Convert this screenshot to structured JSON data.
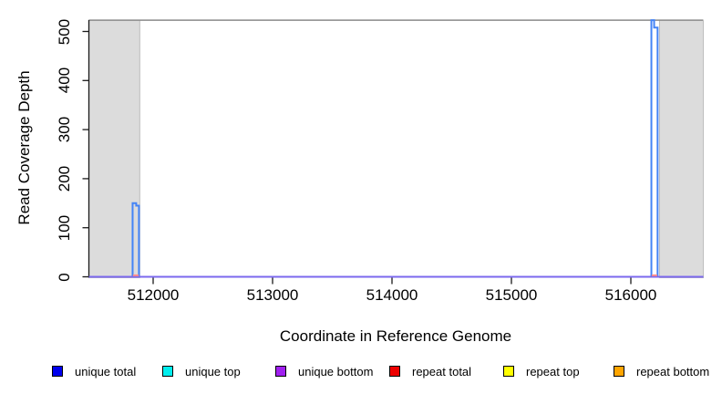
{
  "chart_data": {
    "type": "area",
    "title": "",
    "xlabel": "Coordinate in Reference Genome",
    "ylabel": "Read Coverage Depth",
    "xlim": [
      511462,
      516607
    ],
    "ylim": [
      0,
      523
    ],
    "grid": false,
    "x_ticks": [
      512000,
      513000,
      514000,
      515000,
      516000
    ],
    "y_ticks": [
      0,
      100,
      200,
      300,
      400,
      500
    ],
    "masked_regions": [
      {
        "x_start": 511462,
        "x_end": 511888
      },
      {
        "x_start": 516240,
        "x_end": 516607
      }
    ],
    "top_boundary_value": 523,
    "series": [
      {
        "name": "unique total coverage trace",
        "color": "#4484F6",
        "points": [
          [
            511462,
            0
          ],
          [
            511828,
            0
          ],
          [
            511828,
            150
          ],
          [
            511858,
            150
          ],
          [
            511858,
            145
          ],
          [
            511881,
            145
          ],
          [
            511881,
            0
          ],
          [
            516172,
            0
          ],
          [
            516172,
            523
          ],
          [
            516195,
            523
          ],
          [
            516195,
            508
          ],
          [
            516224,
            508
          ],
          [
            516224,
            0
          ],
          [
            516607,
            0
          ]
        ]
      }
    ],
    "baseline_series": {
      "name": "unique bottom baseline",
      "color": "#7B68EE",
      "points": [
        [
          511462,
          0
        ],
        [
          516607,
          0
        ]
      ]
    },
    "repeat_segments": [
      {
        "name": "repeat total segment",
        "color": "#FF8C8C",
        "x_start": 511831,
        "x_end": 511879,
        "value": 3
      },
      {
        "name": "repeat total segment",
        "color": "#FF8C8C",
        "x_start": 516175,
        "x_end": 516221,
        "value": 3
      }
    ],
    "region_fill_color": "#DCDCDC",
    "region_border_color": "#BDBDBD",
    "top_line_color": "#8A8A8A",
    "axis_color": "#1A1A1A",
    "peaks": [
      {
        "approx_x": 511855,
        "approx_height": 150
      },
      {
        "approx_x": 516198,
        "approx_height": 523
      }
    ]
  },
  "legend": {
    "items": [
      {
        "label": "unique total",
        "color": "#0000EE"
      },
      {
        "label": "unique top",
        "color": "#00EEEE"
      },
      {
        "label": "unique bottom",
        "color": "#A020F0"
      },
      {
        "label": "repeat total",
        "color": "#EE0000"
      },
      {
        "label": "repeat top",
        "color": "#FFFF00"
      },
      {
        "label": "repeat bottom",
        "color": "#FFA500"
      }
    ]
  }
}
